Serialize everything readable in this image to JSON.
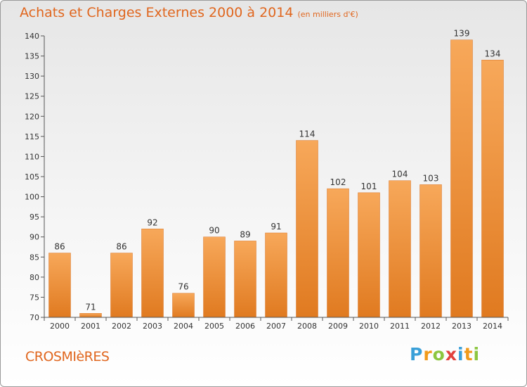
{
  "title": "Achats et Charges Externes 2000 à 2014",
  "unit_note": "(en milliers d'€)",
  "commune": "CROSMIèRES",
  "logo": {
    "letters": [
      "P",
      "r",
      "o",
      "x",
      "i",
      "t",
      "i"
    ],
    "colors": [
      "#3aa0d8",
      "#f19a1a",
      "#8cc63f",
      "#e2413d",
      "#3aa0d8",
      "#f19a1a",
      "#8cc63f"
    ]
  },
  "colors": {
    "accent": "#e0661e",
    "bar_top": "#f7a85a",
    "bar_bottom": "#e07a20"
  },
  "chart_data": {
    "type": "bar",
    "title": "Achats et Charges Externes 2000 à 2014",
    "categories": [
      "2000",
      "2001",
      "2002",
      "2003",
      "2004",
      "2005",
      "2006",
      "2007",
      "2008",
      "2009",
      "2010",
      "2011",
      "2012",
      "2013",
      "2014"
    ],
    "values": [
      86,
      71,
      86,
      92,
      76,
      90,
      89,
      91,
      114,
      102,
      101,
      104,
      103,
      139,
      134
    ],
    "ylim": [
      70,
      140
    ],
    "yticks": [
      70,
      75,
      80,
      85,
      90,
      95,
      100,
      105,
      110,
      115,
      120,
      125,
      130,
      135,
      140
    ],
    "grid": false,
    "xlabel": "",
    "ylabel": ""
  }
}
